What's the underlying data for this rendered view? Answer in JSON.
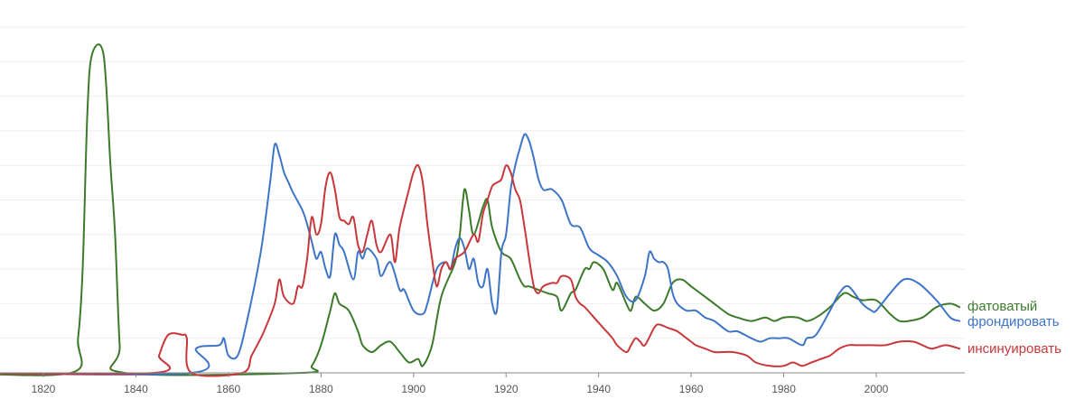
{
  "chart_data": {
    "type": "line",
    "title": "",
    "xlabel": "",
    "ylabel": "",
    "xlim": [
      1800,
      2019
    ],
    "ylim": [
      0,
      10
    ],
    "x_ticks": [
      "1820",
      "1840",
      "1860",
      "1880",
      "1900",
      "1920",
      "1940",
      "1960",
      "1980",
      "2000"
    ],
    "grid": true,
    "legend": "right, labels at line ends",
    "series": [
      {
        "name": "фатоватый",
        "color": "#3b7a2a",
        "points": [
          [
            1800,
            0
          ],
          [
            1826,
            0
          ],
          [
            1827.5,
            1.0
          ],
          [
            1828.5,
            3.0
          ],
          [
            1829.5,
            7.5
          ],
          [
            1830.5,
            9.2
          ],
          [
            1833,
            9.2
          ],
          [
            1834.5,
            6.0
          ],
          [
            1835.5,
            4.0
          ],
          [
            1836.5,
            0.8
          ],
          [
            1837.5,
            0
          ],
          [
            1876,
            0
          ],
          [
            1878,
            0.2
          ],
          [
            1880,
            0.8
          ],
          [
            1882,
            1.8
          ],
          [
            1883,
            2.3
          ],
          [
            1884,
            2.0
          ],
          [
            1886,
            1.8
          ],
          [
            1888,
            1.2
          ],
          [
            1889,
            0.8
          ],
          [
            1891,
            0.6
          ],
          [
            1893,
            0.8
          ],
          [
            1895,
            0.9
          ],
          [
            1897,
            0.6
          ],
          [
            1899,
            0.3
          ],
          [
            1901,
            0.4
          ],
          [
            1902,
            0.2
          ],
          [
            1904,
            0.8
          ],
          [
            1906,
            2.2
          ],
          [
            1909,
            3.2
          ],
          [
            1910,
            4.0
          ],
          [
            1911,
            5.3
          ],
          [
            1912,
            4.7
          ],
          [
            1913,
            4.0
          ],
          [
            1915,
            4.8
          ],
          [
            1916,
            5.0
          ],
          [
            1917,
            4.2
          ],
          [
            1919,
            3.5
          ],
          [
            1921,
            3.3
          ],
          [
            1923,
            2.7
          ],
          [
            1924,
            2.5
          ],
          [
            1925,
            2.5
          ],
          [
            1927,
            2.4
          ],
          [
            1929,
            2.3
          ],
          [
            1931,
            2.2
          ],
          [
            1932,
            1.8
          ],
          [
            1934,
            2.3
          ],
          [
            1935,
            2.4
          ],
          [
            1937,
            3.0
          ],
          [
            1938,
            3.0
          ],
          [
            1939,
            3.2
          ],
          [
            1941,
            3.0
          ],
          [
            1943,
            2.4
          ],
          [
            1944,
            2.6
          ],
          [
            1946,
            2.0
          ],
          [
            1947,
            1.8
          ],
          [
            1948,
            2.2
          ],
          [
            1950,
            2.0
          ],
          [
            1952,
            1.8
          ],
          [
            1954,
            2.0
          ],
          [
            1956,
            2.6
          ],
          [
            1958,
            2.7
          ],
          [
            1960,
            2.5
          ],
          [
            1963,
            2.2
          ],
          [
            1965,
            2.0
          ],
          [
            1968,
            1.7
          ],
          [
            1970,
            1.6
          ],
          [
            1973,
            1.5
          ],
          [
            1976,
            1.6
          ],
          [
            1978,
            1.5
          ],
          [
            1980,
            1.6
          ],
          [
            1983,
            1.6
          ],
          [
            1985,
            1.5
          ],
          [
            1987,
            1.6
          ],
          [
            1990,
            1.9
          ],
          [
            1993,
            2.3
          ],
          [
            1995,
            2.2
          ],
          [
            1997,
            2.1
          ],
          [
            2000,
            2.1
          ],
          [
            2003,
            1.7
          ],
          [
            2005,
            1.5
          ],
          [
            2007,
            1.5
          ],
          [
            2010,
            1.6
          ],
          [
            2013,
            1.9
          ],
          [
            2016,
            2.0
          ],
          [
            2018,
            1.9
          ]
        ]
      },
      {
        "name": "фрондировать",
        "color": "#3d74c8",
        "points": [
          [
            1800,
            0
          ],
          [
            1852,
            0
          ],
          [
            1853,
            0.7
          ],
          [
            1858,
            0.8
          ],
          [
            1859,
            1.0
          ],
          [
            1860,
            0.5
          ],
          [
            1862,
            0.5
          ],
          [
            1864,
            1.5
          ],
          [
            1867,
            3.5
          ],
          [
            1869,
            5.5
          ],
          [
            1870,
            6.6
          ],
          [
            1871,
            6.3
          ],
          [
            1872,
            5.8
          ],
          [
            1873,
            5.5
          ],
          [
            1874,
            5.2
          ],
          [
            1876,
            4.7
          ],
          [
            1877,
            4.3
          ],
          [
            1878,
            3.8
          ],
          [
            1879,
            3.3
          ],
          [
            1880,
            3.5
          ],
          [
            1881,
            3.0
          ],
          [
            1882,
            2.8
          ],
          [
            1883,
            4.0
          ],
          [
            1884,
            3.7
          ],
          [
            1885,
            3.5
          ],
          [
            1887,
            2.7
          ],
          [
            1888,
            3.5
          ],
          [
            1889,
            3.3
          ],
          [
            1890,
            3.6
          ],
          [
            1892,
            3.3
          ],
          [
            1893,
            2.8
          ],
          [
            1895,
            3.2
          ],
          [
            1897,
            2.4
          ],
          [
            1898,
            2.4
          ],
          [
            1900,
            1.8
          ],
          [
            1902,
            1.7
          ],
          [
            1903,
            2.0
          ],
          [
            1905,
            3.0
          ],
          [
            1907,
            3.2
          ],
          [
            1908,
            3.0
          ],
          [
            1909,
            3.6
          ],
          [
            1910,
            3.9
          ],
          [
            1911,
            3.6
          ],
          [
            1912,
            3.0
          ],
          [
            1913,
            3.3
          ],
          [
            1914,
            2.6
          ],
          [
            1915,
            2.5
          ],
          [
            1916,
            3.0
          ],
          [
            1917,
            2.0
          ],
          [
            1918,
            1.8
          ],
          [
            1919,
            3.5
          ],
          [
            1920,
            4.0
          ],
          [
            1921,
            5.3
          ],
          [
            1922,
            6.0
          ],
          [
            1923,
            6.5
          ],
          [
            1924,
            6.9
          ],
          [
            1925,
            6.7
          ],
          [
            1926,
            6.2
          ],
          [
            1927,
            5.6
          ],
          [
            1928,
            5.3
          ],
          [
            1929,
            5.3
          ],
          [
            1930,
            5.3
          ],
          [
            1932,
            5.0
          ],
          [
            1934,
            4.3
          ],
          [
            1936,
            4.2
          ],
          [
            1938,
            3.6
          ],
          [
            1940,
            3.4
          ],
          [
            1942,
            3.2
          ],
          [
            1944,
            2.8
          ],
          [
            1946,
            2.2
          ],
          [
            1948,
            2.1
          ],
          [
            1950,
            2.8
          ],
          [
            1951,
            3.5
          ],
          [
            1952,
            3.3
          ],
          [
            1953,
            3.2
          ],
          [
            1954,
            3.2
          ],
          [
            1955,
            3.0
          ],
          [
            1956,
            2.3
          ],
          [
            1957,
            2.0
          ],
          [
            1959,
            1.8
          ],
          [
            1961,
            1.8
          ],
          [
            1963,
            1.6
          ],
          [
            1965,
            1.5
          ],
          [
            1968,
            1.2
          ],
          [
            1970,
            1.2
          ],
          [
            1973,
            1.0
          ],
          [
            1975,
            0.9
          ],
          [
            1977,
            1.0
          ],
          [
            1979,
            1.0
          ],
          [
            1981,
            1.0
          ],
          [
            1984,
            0.8
          ],
          [
            1985,
            1.0
          ],
          [
            1987,
            1.1
          ],
          [
            1990,
            1.8
          ],
          [
            1992,
            2.3
          ],
          [
            1994,
            2.5
          ],
          [
            1997,
            2.0
          ],
          [
            1999,
            1.8
          ],
          [
            2000,
            1.8
          ],
          [
            2003,
            2.3
          ],
          [
            2006,
            2.7
          ],
          [
            2009,
            2.6
          ],
          [
            2013,
            2.1
          ],
          [
            2016,
            1.6
          ],
          [
            2018,
            1.5
          ]
        ]
      },
      {
        "name": "инсинуировать",
        "color": "#c8373a",
        "points": [
          [
            1800,
            0
          ],
          [
            1844,
            0
          ],
          [
            1845,
            0.5
          ],
          [
            1847,
            1.1
          ],
          [
            1850,
            1.1
          ],
          [
            1851,
            1.0
          ],
          [
            1852,
            0
          ],
          [
            1863,
            0
          ],
          [
            1865,
            0.5
          ],
          [
            1867,
            1.0
          ],
          [
            1868,
            1.3
          ],
          [
            1870,
            2.0
          ],
          [
            1871,
            2.7
          ],
          [
            1872,
            2.2
          ],
          [
            1874,
            2.0
          ],
          [
            1875,
            2.5
          ],
          [
            1876,
            2.5
          ],
          [
            1877,
            3.3
          ],
          [
            1878,
            4.5
          ],
          [
            1879,
            4.0
          ],
          [
            1880,
            4.3
          ],
          [
            1881,
            5.4
          ],
          [
            1882,
            5.8
          ],
          [
            1883,
            5.3
          ],
          [
            1884,
            4.5
          ],
          [
            1885,
            4.4
          ],
          [
            1886,
            4.3
          ],
          [
            1887,
            4.5
          ],
          [
            1888,
            3.7
          ],
          [
            1889,
            3.5
          ],
          [
            1890,
            4.0
          ],
          [
            1891,
            4.4
          ],
          [
            1892,
            3.7
          ],
          [
            1893,
            3.5
          ],
          [
            1895,
            4.0
          ],
          [
            1896,
            3.2
          ],
          [
            1897,
            4.2
          ],
          [
            1899,
            5.3
          ],
          [
            1900,
            5.8
          ],
          [
            1901,
            6.0
          ],
          [
            1902,
            5.5
          ],
          [
            1903,
            4.3
          ],
          [
            1904,
            3.3
          ],
          [
            1905,
            2.5
          ],
          [
            1906,
            3.0
          ],
          [
            1907,
            3.2
          ],
          [
            1908,
            3.0
          ],
          [
            1909,
            3.3
          ],
          [
            1911,
            3.5
          ],
          [
            1913,
            4.0
          ],
          [
            1914,
            3.8
          ],
          [
            1915,
            4.6
          ],
          [
            1916,
            5.0
          ],
          [
            1917,
            5.4
          ],
          [
            1918,
            5.5
          ],
          [
            1919,
            5.6
          ],
          [
            1920,
            6.0
          ],
          [
            1921,
            5.8
          ],
          [
            1922,
            5.3
          ],
          [
            1923,
            5.0
          ],
          [
            1924,
            4.2
          ],
          [
            1925,
            3.3
          ],
          [
            1926,
            2.5
          ],
          [
            1927,
            2.3
          ],
          [
            1928,
            2.5
          ],
          [
            1930,
            2.6
          ],
          [
            1931,
            2.6
          ],
          [
            1932,
            2.8
          ],
          [
            1934,
            2.7
          ],
          [
            1935,
            2.2
          ],
          [
            1936,
            2.0
          ],
          [
            1937,
            1.9
          ],
          [
            1939,
            1.6
          ],
          [
            1941,
            1.3
          ],
          [
            1943,
            1.0
          ],
          [
            1944,
            0.8
          ],
          [
            1946,
            0.6
          ],
          [
            1947,
            0.8
          ],
          [
            1948,
            1.0
          ],
          [
            1949,
            0.9
          ],
          [
            1950,
            0.8
          ],
          [
            1952,
            1.3
          ],
          [
            1953,
            1.4
          ],
          [
            1955,
            1.3
          ],
          [
            1957,
            1.2
          ],
          [
            1959,
            1.0
          ],
          [
            1960,
            0.9
          ],
          [
            1961,
            0.8
          ],
          [
            1963,
            0.7
          ],
          [
            1965,
            0.6
          ],
          [
            1967,
            0.6
          ],
          [
            1969,
            0.6
          ],
          [
            1972,
            0.5
          ],
          [
            1974,
            0.3
          ],
          [
            1977,
            0.2
          ],
          [
            1980,
            0.2
          ],
          [
            1982,
            0.3
          ],
          [
            1984,
            0.2
          ],
          [
            1986,
            0.3
          ],
          [
            1988,
            0.4
          ],
          [
            1990,
            0.5
          ],
          [
            1992,
            0.7
          ],
          [
            1994,
            0.8
          ],
          [
            1996,
            0.8
          ],
          [
            1999,
            0.8
          ],
          [
            2002,
            0.8
          ],
          [
            2005,
            0.9
          ],
          [
            2008,
            0.9
          ],
          [
            2010,
            0.8
          ],
          [
            2012,
            0.7
          ],
          [
            2015,
            0.8
          ],
          [
            2018,
            0.7
          ]
        ]
      }
    ]
  }
}
